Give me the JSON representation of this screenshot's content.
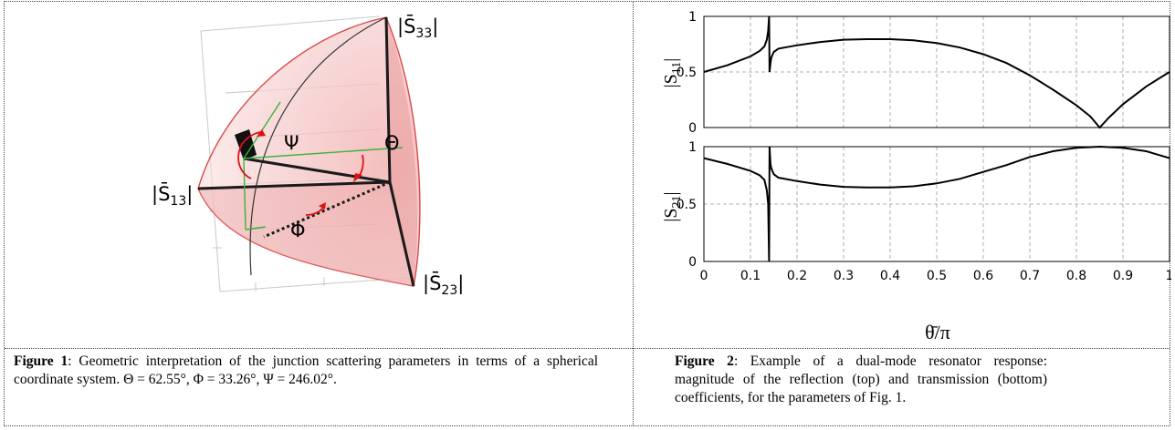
{
  "figure1": {
    "labels": {
      "s33": "|S̄",
      "s33_sub": "33",
      "s13": "|S̄",
      "s13_sub": "13",
      "s23": "|S̄",
      "s23_sub": "23",
      "bar_close": "|",
      "psi": "Ψ",
      "theta": "Θ",
      "phi": "Φ"
    },
    "caption_label": "Figure 1",
    "caption_text": ": Geometric interpretation of the junction scattering parameters in terms of a spherical coordinate system.  Θ = 62.55°, Φ = 33.26°, Ψ = 246.02°."
  },
  "figure2": {
    "caption_label": "Figure 2",
    "caption_text": ": Example of a dual-mode resonator response: magnitude of the reflection (top) and transmission (bottom) coefficients, for the parameters of Fig. 1.",
    "xlabel": "θ̄/π",
    "top_ylabel": "|S",
    "top_ylabel_sub": "11",
    "bottom_ylabel": "|S",
    "bottom_ylabel_sub": "21",
    "ylabel_close": "|",
    "x_ticks": [
      "0",
      "0.1",
      "0.2",
      "0.3",
      "0.4",
      "0.5",
      "0.6",
      "0.7",
      "0.8",
      "0.9",
      "1"
    ],
    "y_ticks": [
      "0",
      "0.5",
      "1"
    ]
  },
  "chart_data": [
    {
      "type": "line",
      "title": "",
      "xlabel": "",
      "ylabel": "|S11|",
      "xlim": [
        0,
        1
      ],
      "ylim": [
        0,
        1
      ],
      "grid": true,
      "series": [
        {
          "x": [
            0,
            0.05,
            0.1,
            0.12,
            0.13,
            0.135,
            0.138,
            0.14,
            0.141,
            0.143,
            0.145,
            0.15,
            0.16,
            0.2,
            0.25,
            0.3,
            0.35,
            0.4,
            0.45,
            0.5,
            0.55,
            0.6,
            0.65,
            0.7,
            0.75,
            0.8,
            0.83,
            0.85,
            0.87,
            0.9,
            0.95,
            1.0
          ],
          "values": [
            0.5,
            0.56,
            0.64,
            0.69,
            0.73,
            0.79,
            0.87,
            1.0,
            0.5,
            0.58,
            0.63,
            0.68,
            0.71,
            0.74,
            0.77,
            0.79,
            0.795,
            0.795,
            0.785,
            0.76,
            0.72,
            0.66,
            0.58,
            0.47,
            0.34,
            0.2,
            0.1,
            0.0,
            0.09,
            0.21,
            0.37,
            0.5
          ]
        }
      ]
    },
    {
      "type": "line",
      "title": "",
      "xlabel": "θ̄/π",
      "ylabel": "|S21|",
      "xlim": [
        0,
        1
      ],
      "ylim": [
        0,
        1
      ],
      "grid": true,
      "series": [
        {
          "x": [
            0,
            0.05,
            0.1,
            0.12,
            0.13,
            0.135,
            0.138,
            0.14,
            0.141,
            0.143,
            0.145,
            0.15,
            0.16,
            0.2,
            0.25,
            0.3,
            0.35,
            0.4,
            0.45,
            0.5,
            0.55,
            0.6,
            0.65,
            0.7,
            0.75,
            0.8,
            0.85,
            0.9,
            0.95,
            1.0
          ],
          "values": [
            0.9,
            0.85,
            0.79,
            0.75,
            0.71,
            0.62,
            0.5,
            0.0,
            1.0,
            0.85,
            0.81,
            0.76,
            0.73,
            0.7,
            0.67,
            0.65,
            0.645,
            0.645,
            0.655,
            0.68,
            0.72,
            0.78,
            0.84,
            0.91,
            0.96,
            0.99,
            1.0,
            0.99,
            0.96,
            0.9
          ]
        }
      ]
    }
  ]
}
